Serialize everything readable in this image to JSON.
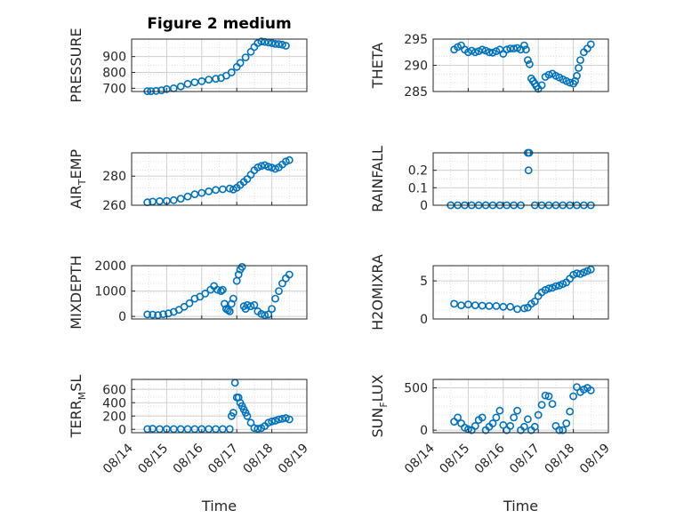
{
  "title": "Figure 2 medium",
  "xlabel": "Time",
  "x_tick_labels": [
    "08/14",
    "08/15",
    "08/16",
    "08/17",
    "08/18",
    "08/19"
  ],
  "marker_color": "#0072BD",
  "chart_data": [
    {
      "type": "scatter",
      "title": "Figure 2 medium",
      "ylabel": "PRESSURE",
      "ylabel_main": "PRESSURE",
      "ylabel_sub": "",
      "ylabel_tail": "",
      "xlim": [
        0,
        5
      ],
      "ylim": [
        680,
        1010
      ],
      "yticks": [
        700,
        800,
        900
      ],
      "ytick_labels": [
        "700",
        "800",
        "900"
      ],
      "grid": "on",
      "x": [
        0.45,
        0.55,
        0.7,
        0.85,
        1.0,
        1.2,
        1.4,
        1.6,
        1.8,
        2.0,
        2.2,
        2.4,
        2.55,
        2.7,
        2.85,
        3.0,
        3.1,
        3.25,
        3.4,
        3.5,
        3.6,
        3.7,
        3.8,
        3.9,
        4.0,
        4.1,
        4.2,
        4.3,
        4.4
      ],
      "y": [
        682,
        682,
        684,
        688,
        695,
        700,
        712,
        728,
        738,
        745,
        755,
        760,
        765,
        780,
        800,
        835,
        860,
        895,
        930,
        960,
        985,
        995,
        992,
        988,
        985,
        980,
        978,
        975,
        968
      ]
    },
    {
      "type": "scatter",
      "ylabel": "THETA",
      "ylabel_main": "THETA",
      "ylabel_sub": "",
      "ylabel_tail": "",
      "xlim": [
        0,
        5
      ],
      "ylim": [
        285,
        295
      ],
      "yticks": [
        285,
        290,
        295
      ],
      "ytick_labels": [
        "285",
        "290",
        "295"
      ],
      "grid": "on",
      "x": [
        0.6,
        0.7,
        0.8,
        0.9,
        1.0,
        1.1,
        1.2,
        1.3,
        1.4,
        1.5,
        1.6,
        1.7,
        1.8,
        1.9,
        2.0,
        2.1,
        2.2,
        2.3,
        2.4,
        2.5,
        2.6,
        2.65,
        2.7,
        2.75,
        2.8,
        2.85,
        2.9,
        2.95,
        3.0,
        3.1,
        3.2,
        3.3,
        3.4,
        3.5,
        3.6,
        3.7,
        3.8,
        3.9,
        4.0,
        4.05,
        4.1,
        4.15,
        4.2,
        4.3,
        4.4,
        4.5
      ],
      "y": [
        293,
        293.5,
        293.8,
        293,
        292.5,
        292.8,
        292.5,
        292.7,
        293,
        292.8,
        292.5,
        292.4,
        292.7,
        293,
        292.2,
        293,
        293.2,
        293.2,
        293.3,
        293,
        293.8,
        293,
        291,
        290.2,
        287.5,
        287,
        286.5,
        286,
        285.5,
        286.2,
        287.8,
        288.2,
        288.4,
        288,
        287.7,
        287.3,
        287,
        286.7,
        286.5,
        287,
        288,
        289.5,
        291,
        292.5,
        293.2,
        294
      ]
    },
    {
      "type": "scatter",
      "ylabel": "AIR_TEMP",
      "ylabel_main": "AIR",
      "ylabel_sub": "T",
      "ylabel_tail": "EMP",
      "xlim": [
        0,
        5
      ],
      "ylim": [
        260,
        296
      ],
      "yticks": [
        260,
        280
      ],
      "ytick_labels": [
        "260",
        "280"
      ],
      "grid": "on",
      "x": [
        0.45,
        0.6,
        0.8,
        1.0,
        1.2,
        1.4,
        1.6,
        1.8,
        2.0,
        2.2,
        2.4,
        2.6,
        2.8,
        2.9,
        3.0,
        3.1,
        3.2,
        3.3,
        3.4,
        3.5,
        3.6,
        3.7,
        3.8,
        3.9,
        4.0,
        4.1,
        4.2,
        4.3,
        4.4,
        4.5
      ],
      "y": [
        262,
        262.5,
        262.8,
        263,
        263.5,
        264.5,
        266,
        267.5,
        268.5,
        269.5,
        270.5,
        271,
        271.5,
        270.8,
        272,
        274,
        276,
        278,
        281,
        284,
        286,
        287,
        287.5,
        286.5,
        285.8,
        285,
        286,
        288,
        290,
        291
      ]
    },
    {
      "type": "scatter",
      "ylabel": "RAINFALL",
      "ylabel_main": "RAINFALL",
      "ylabel_sub": "",
      "ylabel_tail": "",
      "xlim": [
        0,
        5
      ],
      "ylim": [
        0,
        0.3
      ],
      "yticks": [
        0,
        0.1,
        0.2
      ],
      "ytick_labels": [
        "0",
        "0.1",
        "0.2"
      ],
      "grid": "on",
      "x": [
        0.5,
        0.7,
        0.9,
        1.1,
        1.3,
        1.5,
        1.7,
        1.9,
        2.1,
        2.3,
        2.5,
        2.7,
        2.72,
        2.74,
        2.9,
        3.1,
        3.3,
        3.5,
        3.7,
        3.9,
        4.1,
        4.3,
        4.5
      ],
      "y": [
        0,
        0,
        0,
        0,
        0,
        0,
        0,
        0,
        0,
        0,
        0,
        0.3,
        0.2,
        0.3,
        0,
        0,
        0,
        0,
        0,
        0,
        0,
        0,
        0
      ]
    },
    {
      "type": "scatter",
      "ylabel": "MIXDEPTH",
      "ylabel_main": "MIXDEPTH",
      "ylabel_sub": "",
      "ylabel_tail": "",
      "xlim": [
        0,
        5
      ],
      "ylim": [
        -100,
        2000
      ],
      "yticks": [
        0,
        1000,
        2000
      ],
      "ytick_labels": [
        "0",
        "1000",
        "2000"
      ],
      "grid": "on",
      "x": [
        0.45,
        0.6,
        0.75,
        0.9,
        1.05,
        1.2,
        1.35,
        1.5,
        1.65,
        1.8,
        1.95,
        2.1,
        2.25,
        2.35,
        2.45,
        2.55,
        2.6,
        2.65,
        2.7,
        2.75,
        2.8,
        2.85,
        2.9,
        3.0,
        3.05,
        3.1,
        3.15,
        3.2,
        3.25,
        3.3,
        3.4,
        3.5,
        3.6,
        3.7,
        3.8,
        3.9,
        4.0,
        4.1,
        4.2,
        4.3,
        4.4,
        4.5
      ],
      "y": [
        80,
        70,
        50,
        90,
        120,
        180,
        260,
        380,
        520,
        700,
        780,
        900,
        1050,
        1200,
        1050,
        1000,
        1050,
        500,
        300,
        250,
        200,
        500,
        700,
        1400,
        1650,
        1850,
        1950,
        400,
        300,
        450,
        400,
        450,
        200,
        100,
        50,
        80,
        300,
        700,
        1000,
        1300,
        1500,
        1650
      ]
    },
    {
      "type": "scatter",
      "ylabel": "H2OMIXRA",
      "ylabel_main": "H2OMIXRA",
      "ylabel_sub": "",
      "ylabel_tail": "",
      "xlim": [
        0,
        5
      ],
      "ylim": [
        0,
        7
      ],
      "yticks": [
        0,
        5
      ],
      "ytick_labels": [
        "0",
        "5"
      ],
      "grid": "on",
      "x": [
        0.6,
        0.8,
        1.0,
        1.2,
        1.4,
        1.6,
        1.8,
        2.0,
        2.2,
        2.4,
        2.6,
        2.7,
        2.8,
        2.9,
        3.0,
        3.1,
        3.2,
        3.3,
        3.4,
        3.5,
        3.6,
        3.7,
        3.8,
        3.9,
        4.0,
        4.1,
        4.2,
        4.3,
        4.4,
        4.5
      ],
      "y": [
        2,
        1.8,
        1.9,
        1.8,
        1.75,
        1.7,
        1.7,
        1.6,
        1.6,
        1.3,
        1.4,
        1.5,
        2.0,
        2.3,
        3.0,
        3.5,
        3.8,
        4.0,
        4.1,
        4.3,
        4.4,
        4.6,
        4.8,
        5.3,
        5.8,
        6.0,
        5.9,
        6.1,
        6.3,
        6.5
      ]
    },
    {
      "type": "scatter",
      "ylabel": "TERR_MSL",
      "ylabel_main": "TERR",
      "ylabel_sub": "M",
      "ylabel_tail": "SL",
      "xlim": [
        0,
        5
      ],
      "ylim": [
        -50,
        750
      ],
      "yticks": [
        0,
        200,
        400,
        600
      ],
      "ytick_labels": [
        "0",
        "200",
        "400",
        "600"
      ],
      "grid": "on",
      "x": [
        0.45,
        0.6,
        0.8,
        1.0,
        1.2,
        1.4,
        1.6,
        1.8,
        2.0,
        2.2,
        2.4,
        2.6,
        2.8,
        2.85,
        2.9,
        2.95,
        3.0,
        3.05,
        3.1,
        3.15,
        3.2,
        3.25,
        3.3,
        3.4,
        3.5,
        3.6,
        3.7,
        3.8,
        3.9,
        4.0,
        4.1,
        4.2,
        4.3,
        4.4,
        4.5
      ],
      "y": [
        5,
        10,
        5,
        5,
        5,
        5,
        5,
        5,
        5,
        5,
        5,
        5,
        5,
        200,
        250,
        700,
        480,
        480,
        400,
        350,
        300,
        250,
        200,
        100,
        20,
        10,
        20,
        50,
        100,
        120,
        130,
        150,
        160,
        170,
        150
      ]
    },
    {
      "type": "scatter",
      "ylabel": "SUN_FLUX",
      "ylabel_main": "SUN",
      "ylabel_sub": "F",
      "ylabel_tail": "LUX",
      "xlim": [
        0,
        5
      ],
      "ylim": [
        -30,
        600
      ],
      "yticks": [
        0,
        500
      ],
      "ytick_labels": [
        "0",
        "500"
      ],
      "grid": "on",
      "x": [
        0.6,
        0.7,
        0.8,
        0.9,
        1.0,
        1.1,
        1.2,
        1.3,
        1.4,
        1.5,
        1.6,
        1.7,
        1.8,
        1.9,
        2.0,
        2.1,
        2.2,
        2.3,
        2.4,
        2.5,
        2.6,
        2.7,
        2.8,
        2.9,
        3.0,
        3.1,
        3.2,
        3.3,
        3.4,
        3.5,
        3.6,
        3.7,
        3.8,
        3.9,
        4.0,
        4.1,
        4.2,
        4.3,
        4.4,
        4.5
      ],
      "y": [
        100,
        150,
        80,
        30,
        10,
        0,
        50,
        120,
        150,
        0,
        40,
        80,
        150,
        230,
        60,
        0,
        50,
        150,
        230,
        0,
        40,
        130,
        0,
        40,
        180,
        300,
        410,
        400,
        310,
        50,
        0,
        0,
        80,
        220,
        400,
        510,
        450,
        480,
        500,
        470
      ]
    }
  ]
}
